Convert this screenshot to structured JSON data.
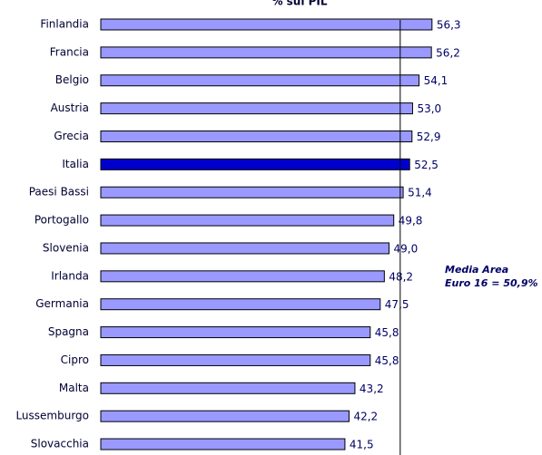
{
  "chart_data": {
    "type": "bar",
    "orientation": "horizontal",
    "title": "% sul PIL",
    "categories": [
      "Finlandia",
      "Francia",
      "Belgio",
      "Austria",
      "Grecia",
      "Italia",
      "Paesi Bassi",
      "Portogallo",
      "Slovenia",
      "Irlanda",
      "Germania",
      "Spagna",
      "Cipro",
      "Malta",
      "Lussemburgo",
      "Slovacchia"
    ],
    "values": [
      56.3,
      56.2,
      54.1,
      53.0,
      52.9,
      52.5,
      51.4,
      49.8,
      49.0,
      48.2,
      47.5,
      45.8,
      45.8,
      43.2,
      42.2,
      41.5
    ],
    "value_labels": [
      "56,3",
      "56,2",
      "54,1",
      "53,0",
      "52,9",
      "52,5",
      "51,4",
      "49,8",
      "49,0",
      "48,2",
      "47,5",
      "45,8",
      "45,8",
      "43,2",
      "42,2",
      "41,5"
    ],
    "colors": [
      "#9999ff",
      "#9999ff",
      "#9999ff",
      "#9999ff",
      "#9999ff",
      "#0000cc",
      "#9999ff",
      "#9999ff",
      "#9999ff",
      "#9999ff",
      "#9999ff",
      "#9999ff",
      "#9999ff",
      "#9999ff",
      "#9999ff",
      "#9999ff"
    ],
    "xlim": [
      0,
      75
    ],
    "reference_line": {
      "value": 50.9,
      "label": [
        "Media Area",
        "Euro 16 = 50,9%"
      ]
    }
  }
}
